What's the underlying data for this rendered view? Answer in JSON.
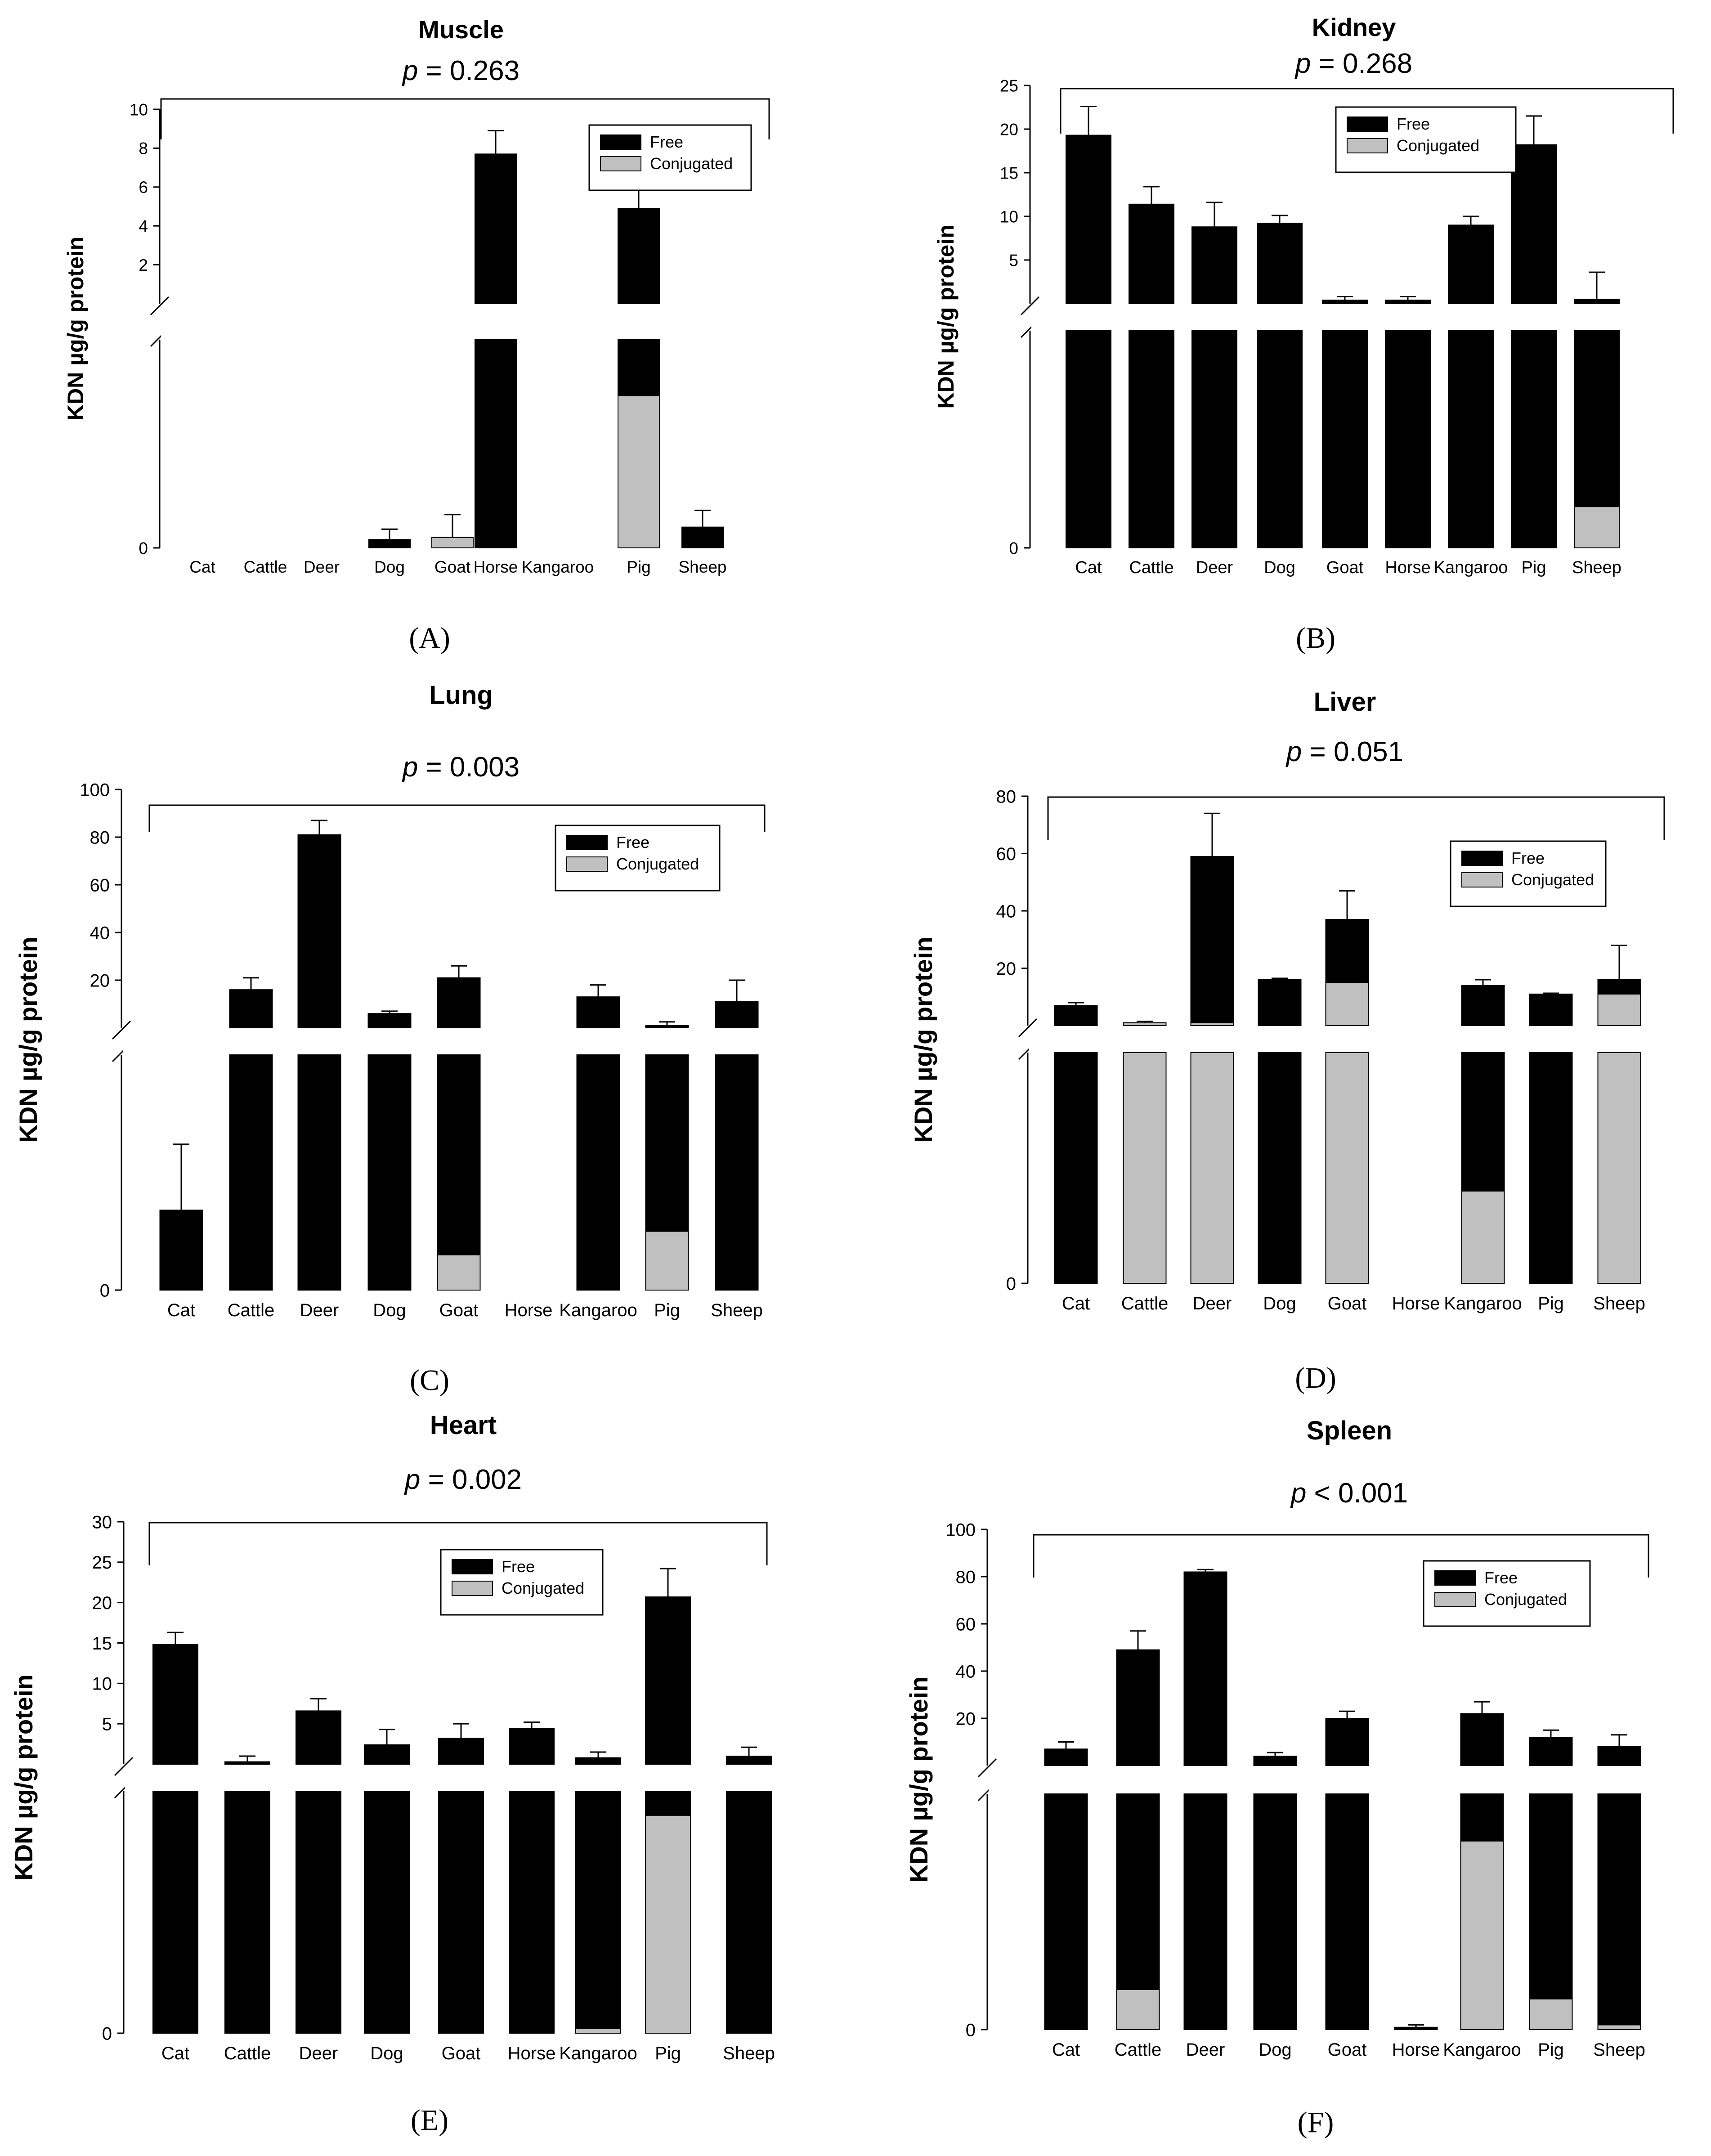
{
  "chart_data": [
    {
      "type": "bar",
      "panel_label": "(A)",
      "title": "Muscle",
      "p_value_label": {
        "italic": "p",
        "rest": " = 0.263"
      },
      "ylabel": "KDN µg/g protein",
      "categories": [
        "Cat",
        "Cattle",
        "Deer",
        "Dog",
        "Goat",
        "Horse",
        "Kangaroo",
        "Pig",
        "Sheep"
      ],
      "upper_axis": {
        "ylim": [
          0,
          10
        ],
        "ticks": [
          "2",
          "4",
          "6",
          "8",
          "10"
        ]
      },
      "lower_axis": {
        "tick_labels": [
          "0"
        ]
      },
      "legend": {
        "position": "top-right",
        "entries": [
          "Free",
          "Conjugated"
        ]
      },
      "colors": {
        "free": "#000000",
        "conjugated": "#c0c0c0"
      },
      "series": [
        {
          "name": "Free total (upper)",
          "values": [
            0,
            0,
            0,
            0,
            0,
            7.7,
            0,
            4.9,
            0
          ]
        },
        {
          "name": "Error (upper)",
          "values": [
            0,
            0,
            0,
            0,
            0,
            1.2,
            0,
            1.1,
            0
          ]
        },
        {
          "name": "Bar total (lower, fraction)",
          "values": [
            0,
            0,
            0,
            0.04,
            0.05,
            1.0,
            0,
            1.0,
            0.1
          ]
        },
        {
          "name": "Conjugated (lower, fraction)",
          "values": [
            0,
            0,
            0,
            0,
            0.05,
            0,
            0,
            0.73,
            0
          ]
        },
        {
          "name": "Error (lower, fraction)",
          "values": [
            0,
            0,
            0,
            0.05,
            0.11,
            0,
            0,
            0,
            0.08
          ]
        }
      ]
    },
    {
      "type": "bar",
      "panel_label": "(B)",
      "title": "Kidney",
      "p_value_label": {
        "italic": "p",
        "rest": " = 0.268"
      },
      "ylabel": "KDN µg/g protein",
      "categories": [
        "Cat",
        "Cattle",
        "Deer",
        "Dog",
        "Goat",
        "Horse",
        "Kangaroo",
        "Pig",
        "Sheep"
      ],
      "upper_axis": {
        "ylim": [
          0,
          25
        ],
        "ticks": [
          "5",
          "10",
          "15",
          "20",
          "25"
        ]
      },
      "lower_axis": {
        "tick_labels": [
          "0"
        ]
      },
      "legend": {
        "position": "top-right",
        "entries": [
          "Free",
          "Conjugated"
        ]
      },
      "colors": {
        "free": "#000000",
        "conjugated": "#c0c0c0"
      },
      "series": [
        {
          "name": "Free total (upper)",
          "values": [
            19.3,
            11.4,
            8.8,
            9.2,
            0.4,
            0.4,
            9.0,
            18.2,
            0.5
          ]
        },
        {
          "name": "Error (upper)",
          "values": [
            3.3,
            2.0,
            2.8,
            0.9,
            0.4,
            0.4,
            1.0,
            3.3,
            3.1
          ]
        },
        {
          "name": "Bar total (lower, fraction)",
          "values": [
            1.0,
            1.0,
            1.0,
            1.0,
            1.0,
            1.0,
            1.0,
            1.0,
            1.0
          ]
        },
        {
          "name": "Conjugated (lower, fraction)",
          "values": [
            0,
            0,
            0,
            0,
            0,
            0,
            0,
            0,
            0.19
          ]
        },
        {
          "name": "Error (lower, fraction)",
          "values": [
            0,
            0,
            0,
            0,
            0,
            0,
            0,
            0,
            0
          ]
        }
      ]
    },
    {
      "type": "bar",
      "panel_label": "(C)",
      "title": "Lung",
      "p_value_label": {
        "italic": "p",
        "rest": " = 0.003"
      },
      "ylabel": "KDN µg/g protein",
      "categories": [
        "Cat",
        "Cattle",
        "Deer",
        "Dog",
        "Goat",
        "Horse",
        "Kangaroo",
        "Pig",
        "Sheep"
      ],
      "upper_axis": {
        "ylim": [
          0,
          100
        ],
        "ticks": [
          "20",
          "40",
          "60",
          "80",
          "100"
        ]
      },
      "lower_axis": {
        "tick_labels": [
          "0"
        ]
      },
      "legend": {
        "position": "top-right",
        "entries": [
          "Free",
          "Conjugated"
        ]
      },
      "colors": {
        "free": "#000000",
        "conjugated": "#c0c0c0"
      },
      "series": [
        {
          "name": "Free total (upper)",
          "values": [
            0,
            16,
            81,
            6,
            21,
            0,
            13,
            1,
            11
          ]
        },
        {
          "name": "Error (upper)",
          "values": [
            0,
            5,
            6,
            1,
            5,
            0,
            5,
            1.5,
            9
          ]
        },
        {
          "name": "Bar total (lower, fraction)",
          "values": [
            0.34,
            1.0,
            1.0,
            1.0,
            1.0,
            0,
            1.0,
            1.0,
            1.0
          ]
        },
        {
          "name": "Conjugated (lower, fraction)",
          "values": [
            0,
            0,
            0,
            0,
            0.15,
            0,
            0,
            0.25,
            0
          ]
        },
        {
          "name": "Error (lower, fraction)",
          "values": [
            0.28,
            0,
            0,
            0,
            0,
            0,
            0,
            0,
            0
          ]
        }
      ]
    },
    {
      "type": "bar",
      "panel_label": "(D)",
      "title": "Liver",
      "p_value_label": {
        "italic": "p",
        "rest": " = 0.051"
      },
      "ylabel": "KDN µg/g protein",
      "categories": [
        "Cat",
        "Cattle",
        "Deer",
        "Dog",
        "Goat",
        "Horse",
        "Kangaroo",
        "Pig",
        "Sheep"
      ],
      "upper_axis": {
        "ylim": [
          0,
          80
        ],
        "ticks": [
          "20",
          "40",
          "60",
          "80"
        ]
      },
      "lower_axis": {
        "tick_labels": [
          "0"
        ]
      },
      "legend": {
        "position": "top-right",
        "entries": [
          "Free",
          "Conjugated"
        ]
      },
      "colors": {
        "free": "#000000",
        "conjugated": "#c0c0c0"
      },
      "series": [
        {
          "name": "Free total (upper)",
          "values": [
            7,
            1,
            59,
            16,
            37,
            0,
            14,
            11,
            16
          ]
        },
        {
          "name": "Conjugated (upper)",
          "values": [
            0,
            1,
            1,
            0,
            15,
            0,
            0,
            0,
            11
          ]
        },
        {
          "name": "Error (upper)",
          "values": [
            1,
            0.5,
            15,
            0.5,
            10,
            0,
            2,
            0.3,
            12
          ]
        },
        {
          "name": "Bar total (lower, fraction)",
          "values": [
            1.0,
            1.0,
            1.0,
            1.0,
            1.0,
            0,
            1.0,
            1.0,
            1.0
          ]
        },
        {
          "name": "Conjugated (lower, fraction)",
          "values": [
            0,
            1.0,
            1.0,
            0,
            1.0,
            0,
            0.4,
            0,
            1.0
          ]
        },
        {
          "name": "Error (lower, fraction)",
          "values": [
            0,
            0,
            0,
            0,
            0,
            0,
            0,
            0,
            0
          ]
        }
      ]
    },
    {
      "type": "bar",
      "panel_label": "(E)",
      "title": "Heart",
      "p_value_label": {
        "italic": "p",
        "rest": " = 0.002"
      },
      "ylabel": "KDN µg/g protein",
      "categories": [
        "Cat",
        "Cattle",
        "Deer",
        "Dog",
        "Goat",
        "Horse",
        "Kangaroo",
        "Pig",
        "Sheep"
      ],
      "upper_axis": {
        "ylim": [
          0,
          30
        ],
        "ticks": [
          "5",
          "10",
          "15",
          "20",
          "25",
          "30"
        ]
      },
      "lower_axis": {
        "tick_labels": [
          "0"
        ]
      },
      "legend": {
        "position": "top-right",
        "entries": [
          "Free",
          "Conjugated"
        ]
      },
      "colors": {
        "free": "#000000",
        "conjugated": "#c0c0c0"
      },
      "series": [
        {
          "name": "Free total (upper)",
          "values": [
            14.8,
            0.3,
            6.6,
            2.4,
            3.2,
            4.4,
            0.8,
            20.7,
            1.0
          ]
        },
        {
          "name": "Error (upper)",
          "values": [
            1.5,
            0.7,
            1.5,
            1.9,
            1.8,
            0.8,
            0.7,
            3.5,
            1.1
          ]
        },
        {
          "name": "Bar total (lower, fraction)",
          "values": [
            1.0,
            1.0,
            1.0,
            1.0,
            1.0,
            1.0,
            1.0,
            1.0,
            1.0
          ]
        },
        {
          "name": "Conjugated (lower, fraction)",
          "values": [
            0,
            0,
            0,
            0,
            0,
            0,
            0.02,
            0.9,
            0
          ]
        },
        {
          "name": "Error (lower, fraction)",
          "values": [
            0,
            0,
            0,
            0,
            0,
            0,
            0,
            0,
            0
          ]
        }
      ]
    },
    {
      "type": "bar",
      "panel_label": "(F)",
      "title": "Spleen",
      "p_value_label": {
        "italic": "p",
        "rest": " < 0.001"
      },
      "ylabel": "KDN µg/g protein",
      "categories": [
        "Cat",
        "Cattle",
        "Deer",
        "Dog",
        "Goat",
        "Horse",
        "Kangaroo",
        "Pig",
        "Sheep"
      ],
      "upper_axis": {
        "ylim": [
          0,
          100
        ],
        "ticks": [
          "20",
          "40",
          "60",
          "80",
          "100"
        ]
      },
      "lower_axis": {
        "tick_labels": [
          "0"
        ]
      },
      "legend": {
        "position": "top-right",
        "entries": [
          "Free",
          "Conjugated"
        ]
      },
      "colors": {
        "free": "#000000",
        "conjugated": "#c0c0c0"
      },
      "series": [
        {
          "name": "Free total (upper)",
          "values": [
            7,
            49,
            82,
            4,
            20,
            0,
            22,
            12,
            8
          ]
        },
        {
          "name": "Error (upper)",
          "values": [
            3,
            8,
            1,
            1.5,
            3,
            0,
            5,
            3,
            5
          ]
        },
        {
          "name": "Bar total (lower, fraction)",
          "values": [
            1.0,
            1.0,
            1.0,
            1.0,
            1.0,
            0.01,
            1.0,
            1.0,
            1.0
          ]
        },
        {
          "name": "Conjugated (lower, fraction)",
          "values": [
            0,
            0.17,
            0,
            0,
            0,
            0,
            0.8,
            0.13,
            0.02
          ]
        },
        {
          "name": "Error (lower, fraction)",
          "values": [
            0,
            0,
            0,
            0,
            0,
            0.01,
            0,
            0,
            0
          ]
        }
      ]
    }
  ]
}
